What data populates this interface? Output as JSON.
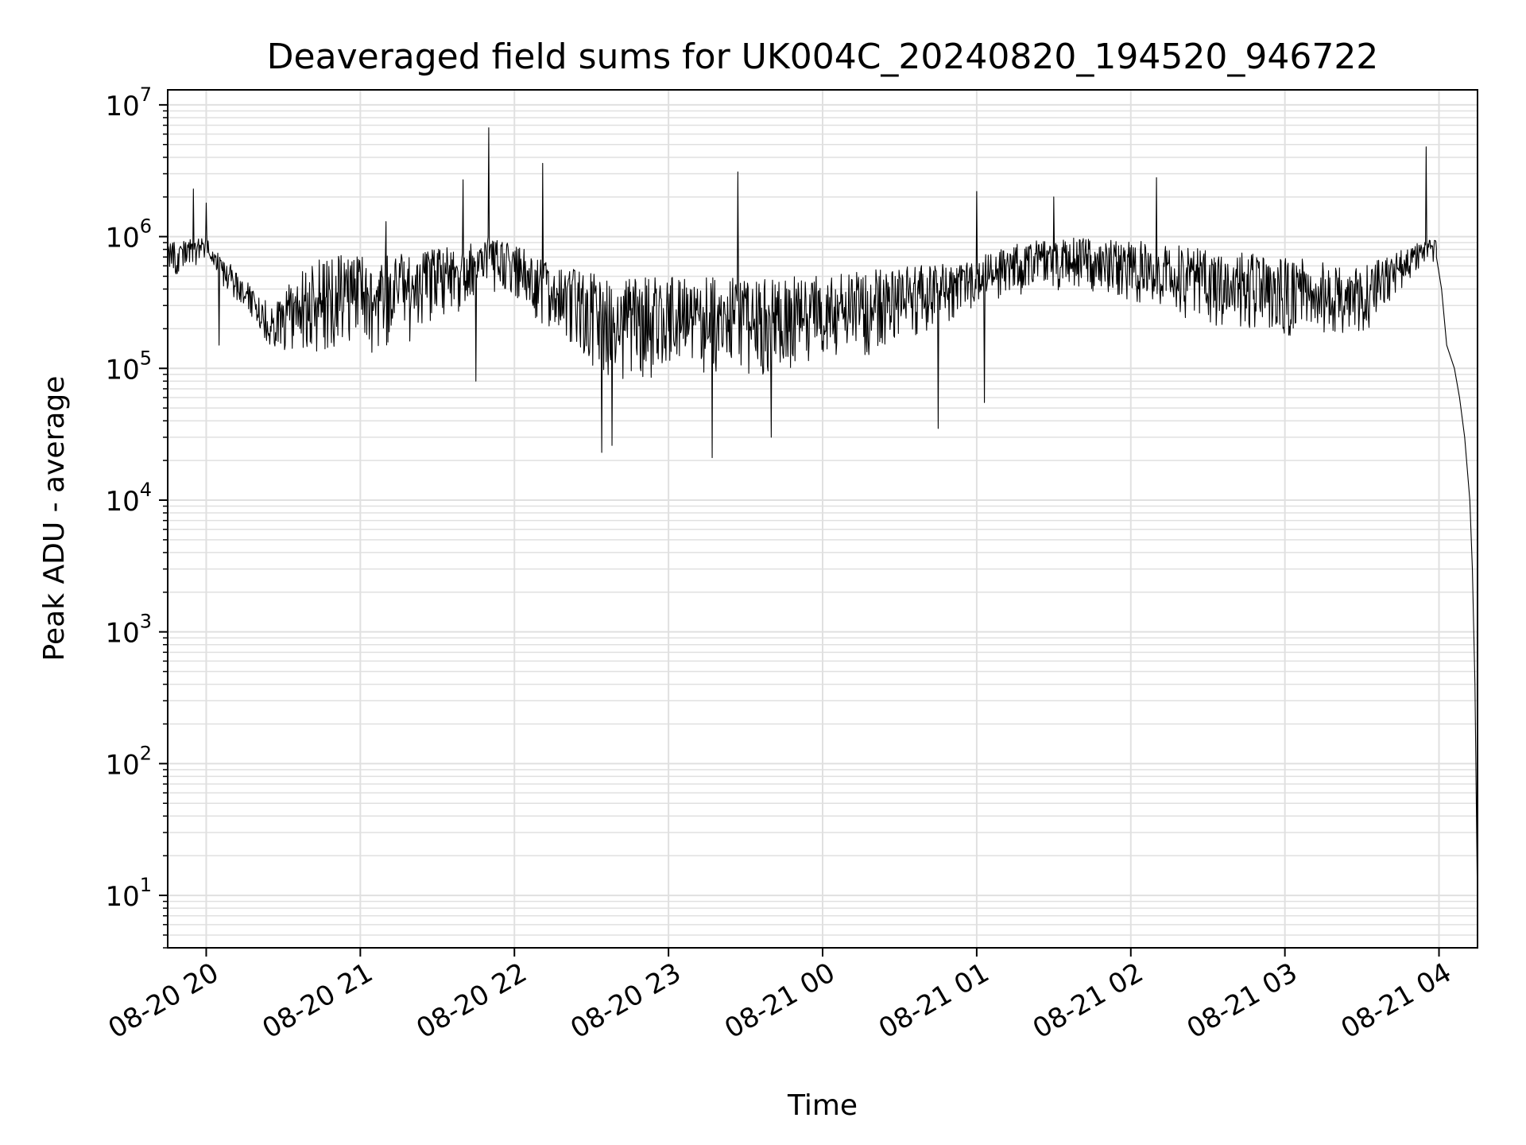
{
  "chart_data": {
    "type": "line",
    "title": "Deaveraged field sums for UK004C_20240820_194520_946722",
    "xlabel": "Time",
    "ylabel": "Peak ADU - average",
    "yscale": "log",
    "ylim": [
      4,
      13000000
    ],
    "xlim": [
      "2024-08-20 19:45",
      "2024-08-21 04:15"
    ],
    "grid": true,
    "line_color": "#000000",
    "grid_color": "#e0e0e0",
    "x_ticks": [
      {
        "value": "2024-08-20 20:00",
        "label": "08-20 20"
      },
      {
        "value": "2024-08-20 21:00",
        "label": "08-20 21"
      },
      {
        "value": "2024-08-20 22:00",
        "label": "08-20 22"
      },
      {
        "value": "2024-08-20 23:00",
        "label": "08-20 23"
      },
      {
        "value": "2024-08-21 00:00",
        "label": "08-21 00"
      },
      {
        "value": "2024-08-21 01:00",
        "label": "08-21 01"
      },
      {
        "value": "2024-08-21 02:00",
        "label": "08-21 02"
      },
      {
        "value": "2024-08-21 03:00",
        "label": "08-21 03"
      },
      {
        "value": "2024-08-21 04:00",
        "label": "08-21 04"
      }
    ],
    "y_ticks": [
      {
        "value": 10,
        "base": "10",
        "exp": "1"
      },
      {
        "value": 100,
        "base": "10",
        "exp": "2"
      },
      {
        "value": 1000,
        "base": "10",
        "exp": "3"
      },
      {
        "value": 10000,
        "base": "10",
        "exp": "4"
      },
      {
        "value": 100000,
        "base": "10",
        "exp": "5"
      },
      {
        "value": 1000000,
        "base": "10",
        "exp": "6"
      },
      {
        "value": 10000000,
        "base": "10",
        "exp": "7"
      }
    ],
    "envelope": [
      {
        "t": "2024-08-20 19:45",
        "lo": 300000,
        "hi": 900000
      },
      {
        "t": "2024-08-20 20:00",
        "lo": 500000,
        "hi": 1000000
      },
      {
        "t": "2024-08-20 20:10",
        "lo": 250000,
        "hi": 600000
      },
      {
        "t": "2024-08-20 20:25",
        "lo": 90000,
        "hi": 300000
      },
      {
        "t": "2024-08-20 20:40",
        "lo": 50000,
        "hi": 700000
      },
      {
        "t": "2024-08-20 21:00",
        "lo": 45000,
        "hi": 750000
      },
      {
        "t": "2024-08-20 21:20",
        "lo": 55000,
        "hi": 750000
      },
      {
        "t": "2024-08-20 21:35",
        "lo": 100000,
        "hi": 850000
      },
      {
        "t": "2024-08-20 21:50",
        "lo": 250000,
        "hi": 1000000
      },
      {
        "t": "2024-08-20 22:05",
        "lo": 150000,
        "hi": 800000
      },
      {
        "t": "2024-08-20 22:20",
        "lo": 60000,
        "hi": 600000
      },
      {
        "t": "2024-08-20 22:35",
        "lo": 30000,
        "hi": 500000
      },
      {
        "t": "2024-08-20 23:00",
        "lo": 32000,
        "hi": 500000
      },
      {
        "t": "2024-08-20 23:30",
        "lo": 32000,
        "hi": 500000
      },
      {
        "t": "2024-08-21 00:00",
        "lo": 38000,
        "hi": 500000
      },
      {
        "t": "2024-08-21 00:30",
        "lo": 60000,
        "hi": 600000
      },
      {
        "t": "2024-08-21 00:55",
        "lo": 150000,
        "hi": 650000
      },
      {
        "t": "2024-08-21 01:15",
        "lo": 200000,
        "hi": 900000
      },
      {
        "t": "2024-08-21 01:40",
        "lo": 250000,
        "hi": 1000000
      },
      {
        "t": "2024-08-21 02:00",
        "lo": 180000,
        "hi": 950000
      },
      {
        "t": "2024-08-21 02:30",
        "lo": 100000,
        "hi": 800000
      },
      {
        "t": "2024-08-21 03:00",
        "lo": 80000,
        "hi": 700000
      },
      {
        "t": "2024-08-21 03:30",
        "lo": 90000,
        "hi": 600000
      },
      {
        "t": "2024-08-21 03:55",
        "lo": 500000,
        "hi": 950000
      }
    ],
    "spikes": [
      {
        "t": "2024-08-20 19:55",
        "value": 2300000
      },
      {
        "t": "2024-08-20 20:00",
        "value": 1800000
      },
      {
        "t": "2024-08-20 21:40",
        "value": 2700000
      },
      {
        "t": "2024-08-20 21:50",
        "value": 6700000
      },
      {
        "t": "2024-08-20 22:11",
        "value": 3600000
      },
      {
        "t": "2024-08-20 23:27",
        "value": 3100000
      },
      {
        "t": "2024-08-21 01:00",
        "value": 2200000
      },
      {
        "t": "2024-08-21 01:30",
        "value": 2000000
      },
      {
        "t": "2024-08-21 02:10",
        "value": 2800000
      },
      {
        "t": "2024-08-21 03:55",
        "value": 4800000
      },
      {
        "t": "2024-08-20 21:10",
        "value": 1300000
      }
    ],
    "dips": [
      {
        "t": "2024-08-20 20:05",
        "value": 150000
      },
      {
        "t": "2024-08-20 21:45",
        "value": 80000
      },
      {
        "t": "2024-08-20 22:34",
        "value": 23000
      },
      {
        "t": "2024-08-20 22:38",
        "value": 26000
      },
      {
        "t": "2024-08-20 23:17",
        "value": 21000
      },
      {
        "t": "2024-08-20 23:40",
        "value": 30000
      },
      {
        "t": "2024-08-21 00:45",
        "value": 35000
      },
      {
        "t": "2024-08-21 01:03",
        "value": 55000
      }
    ],
    "tail": [
      {
        "t": "2024-08-21 03:59",
        "value": 700000
      },
      {
        "t": "2024-08-21 04:01",
        "value": 400000
      },
      {
        "t": "2024-08-21 04:03",
        "value": 150000
      },
      {
        "t": "2024-08-21 04:06",
        "value": 100000
      },
      {
        "t": "2024-08-21 04:08",
        "value": 60000
      },
      {
        "t": "2024-08-21 04:10",
        "value": 30000
      },
      {
        "t": "2024-08-21 04:12",
        "value": 10000
      },
      {
        "t": "2024-08-21 04:13",
        "value": 3000
      },
      {
        "t": "2024-08-21 04:14",
        "value": 400
      },
      {
        "t": "2024-08-21 04:15",
        "value": 8
      }
    ]
  }
}
